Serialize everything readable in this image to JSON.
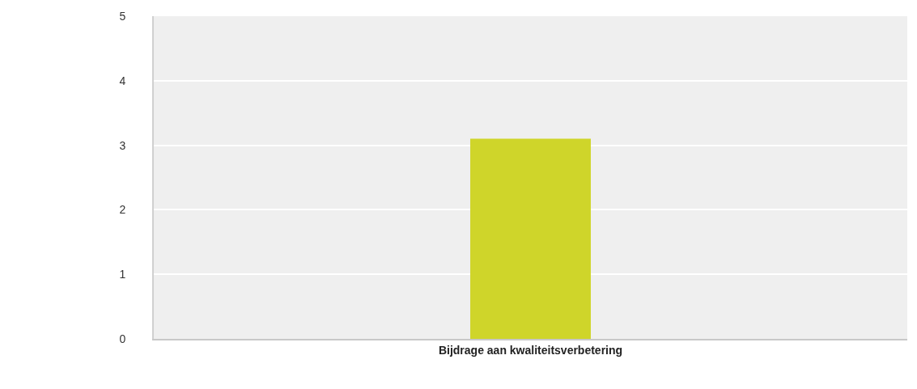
{
  "chart_data": {
    "type": "bar",
    "categories": [
      "Bijdrage aan kwaliteitsverbetering"
    ],
    "values": [
      3.1
    ],
    "color": "#cfd52a",
    "ylim": [
      0,
      5
    ],
    "yticks": [
      0,
      1,
      2,
      3,
      4,
      5
    ],
    "grid": "y",
    "legend": false
  }
}
